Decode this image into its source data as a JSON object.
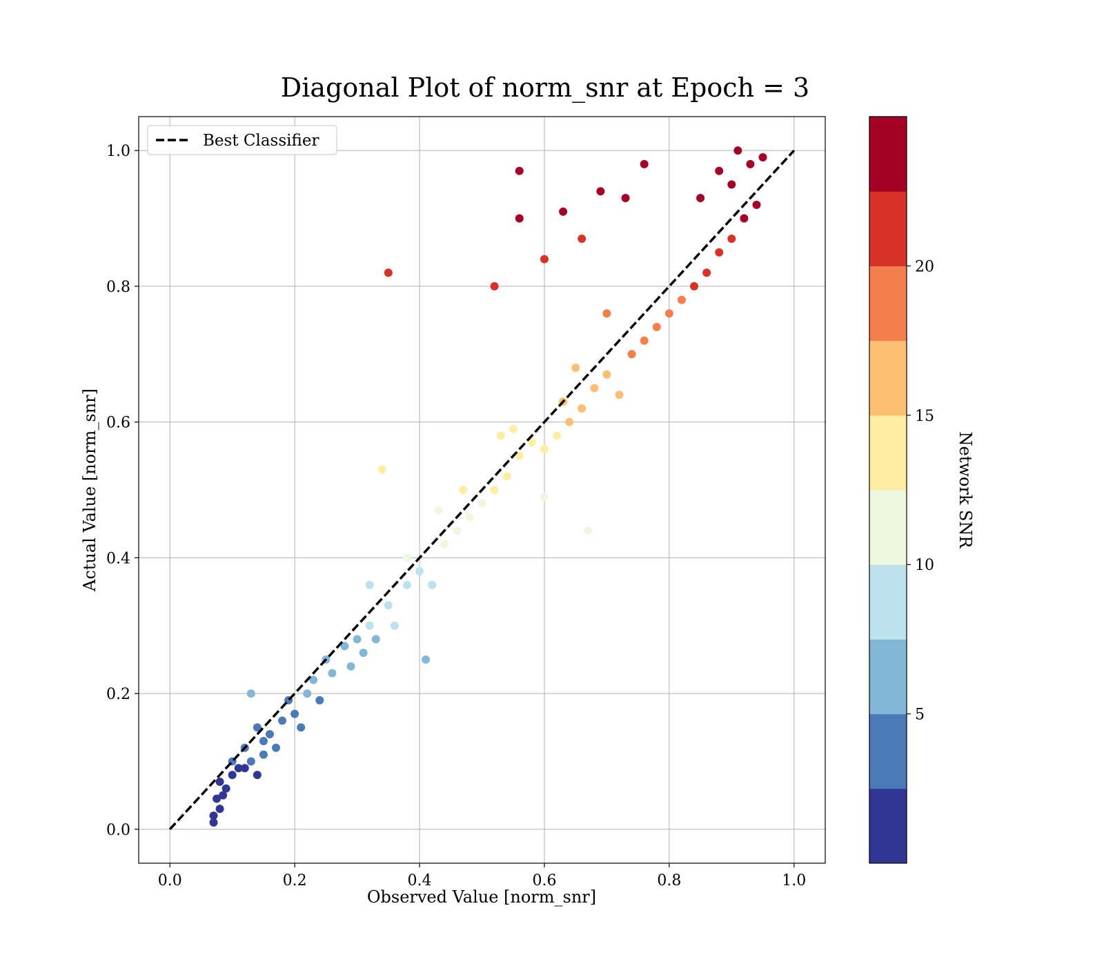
{
  "chart_data": {
    "type": "scatter",
    "title": "Diagonal Plot of norm_snr at Epoch = 3",
    "xlabel": "Observed Value [norm_snr]",
    "ylabel": "Actual Value [norm_snr]",
    "xlim": [
      -0.05,
      1.05
    ],
    "ylim": [
      -0.05,
      1.05
    ],
    "xticks": [
      0.0,
      0.2,
      0.4,
      0.6,
      0.8,
      1.0
    ],
    "yticks": [
      0.0,
      0.2,
      0.4,
      0.6,
      0.8,
      1.0
    ],
    "xtick_labels": [
      "0.0",
      "0.2",
      "0.4",
      "0.6",
      "0.8",
      "1.0"
    ],
    "ytick_labels": [
      "0.0",
      "0.2",
      "0.4",
      "0.6",
      "0.8",
      "1.0"
    ],
    "grid": true,
    "legend": {
      "placement": "upper-left",
      "entries": [
        "Best Classifier"
      ]
    },
    "reference_line": {
      "name": "Best Classifier",
      "x": [
        0.0,
        1.0
      ],
      "y": [
        0.0,
        1.0
      ],
      "style": "dashed",
      "color": "#000000"
    },
    "colorbar": {
      "label": "Network SNR",
      "range": [
        0,
        25
      ],
      "ticks": [
        5,
        10,
        15,
        20
      ],
      "tick_labels": [
        "5",
        "10",
        "15",
        "20"
      ],
      "colormap": "RdYlBu_r",
      "n_bins": 10,
      "bin_colors": [
        "#313695",
        "#4a7ab7",
        "#82b7d7",
        "#bde2ee",
        "#eef8df",
        "#feeda2",
        "#fdbf71",
        "#f57e4d",
        "#d83127",
        "#a50026"
      ]
    },
    "points": [
      [
        0.07,
        0.01
      ],
      [
        0.07,
        0.02
      ],
      [
        0.08,
        0.03
      ],
      [
        0.075,
        0.045
      ],
      [
        0.085,
        0.05
      ],
      [
        0.09,
        0.06
      ],
      [
        0.08,
        0.07
      ],
      [
        0.1,
        0.08
      ],
      [
        0.11,
        0.09
      ],
      [
        0.12,
        0.09
      ],
      [
        0.13,
        0.1
      ],
      [
        0.14,
        0.08
      ],
      [
        0.1,
        0.1
      ],
      [
        0.12,
        0.12
      ],
      [
        0.15,
        0.13
      ],
      [
        0.14,
        0.15
      ],
      [
        0.16,
        0.14
      ],
      [
        0.18,
        0.16
      ],
      [
        0.17,
        0.12
      ],
      [
        0.2,
        0.17
      ],
      [
        0.19,
        0.19
      ],
      [
        0.21,
        0.15
      ],
      [
        0.22,
        0.2
      ],
      [
        0.13,
        0.2
      ],
      [
        0.15,
        0.11
      ],
      [
        0.23,
        0.22
      ],
      [
        0.24,
        0.19
      ],
      [
        0.25,
        0.25
      ],
      [
        0.26,
        0.23
      ],
      [
        0.28,
        0.27
      ],
      [
        0.3,
        0.28
      ],
      [
        0.29,
        0.24
      ],
      [
        0.32,
        0.3
      ],
      [
        0.31,
        0.26
      ],
      [
        0.33,
        0.28
      ],
      [
        0.35,
        0.33
      ],
      [
        0.36,
        0.3
      ],
      [
        0.38,
        0.36
      ],
      [
        0.4,
        0.38
      ],
      [
        0.42,
        0.36
      ],
      [
        0.38,
        0.4
      ],
      [
        0.44,
        0.42
      ],
      [
        0.46,
        0.44
      ],
      [
        0.43,
        0.47
      ],
      [
        0.48,
        0.46
      ],
      [
        0.5,
        0.48
      ],
      [
        0.47,
        0.5
      ],
      [
        0.52,
        0.5
      ],
      [
        0.54,
        0.52
      ],
      [
        0.56,
        0.55
      ],
      [
        0.58,
        0.57
      ],
      [
        0.6,
        0.56
      ],
      [
        0.62,
        0.58
      ],
      [
        0.55,
        0.59
      ],
      [
        0.64,
        0.6
      ],
      [
        0.63,
        0.63
      ],
      [
        0.66,
        0.62
      ],
      [
        0.68,
        0.65
      ],
      [
        0.7,
        0.67
      ],
      [
        0.72,
        0.64
      ],
      [
        0.65,
        0.68
      ],
      [
        0.74,
        0.7
      ],
      [
        0.76,
        0.72
      ],
      [
        0.78,
        0.74
      ],
      [
        0.8,
        0.76
      ],
      [
        0.82,
        0.78
      ],
      [
        0.84,
        0.8
      ],
      [
        0.86,
        0.82
      ],
      [
        0.88,
        0.85
      ],
      [
        0.9,
        0.87
      ],
      [
        0.92,
        0.9
      ],
      [
        0.94,
        0.92
      ],
      [
        0.9,
        0.95
      ],
      [
        0.93,
        0.98
      ],
      [
        0.95,
        0.99
      ],
      [
        0.85,
        0.93
      ],
      [
        0.88,
        0.97
      ],
      [
        0.91,
        1.0
      ],
      [
        0.56,
        0.97
      ],
      [
        0.35,
        0.82
      ],
      [
        0.56,
        0.9
      ],
      [
        0.63,
        0.91
      ],
      [
        0.69,
        0.94
      ],
      [
        0.73,
        0.93
      ],
      [
        0.76,
        0.98
      ],
      [
        0.52,
        0.8
      ],
      [
        0.6,
        0.84
      ],
      [
        0.66,
        0.87
      ],
      [
        0.7,
        0.76
      ],
      [
        0.53,
        0.58
      ],
      [
        0.34,
        0.53
      ],
      [
        0.32,
        0.36
      ],
      [
        0.41,
        0.25
      ],
      [
        0.6,
        0.49
      ],
      [
        0.67,
        0.44
      ]
    ]
  }
}
